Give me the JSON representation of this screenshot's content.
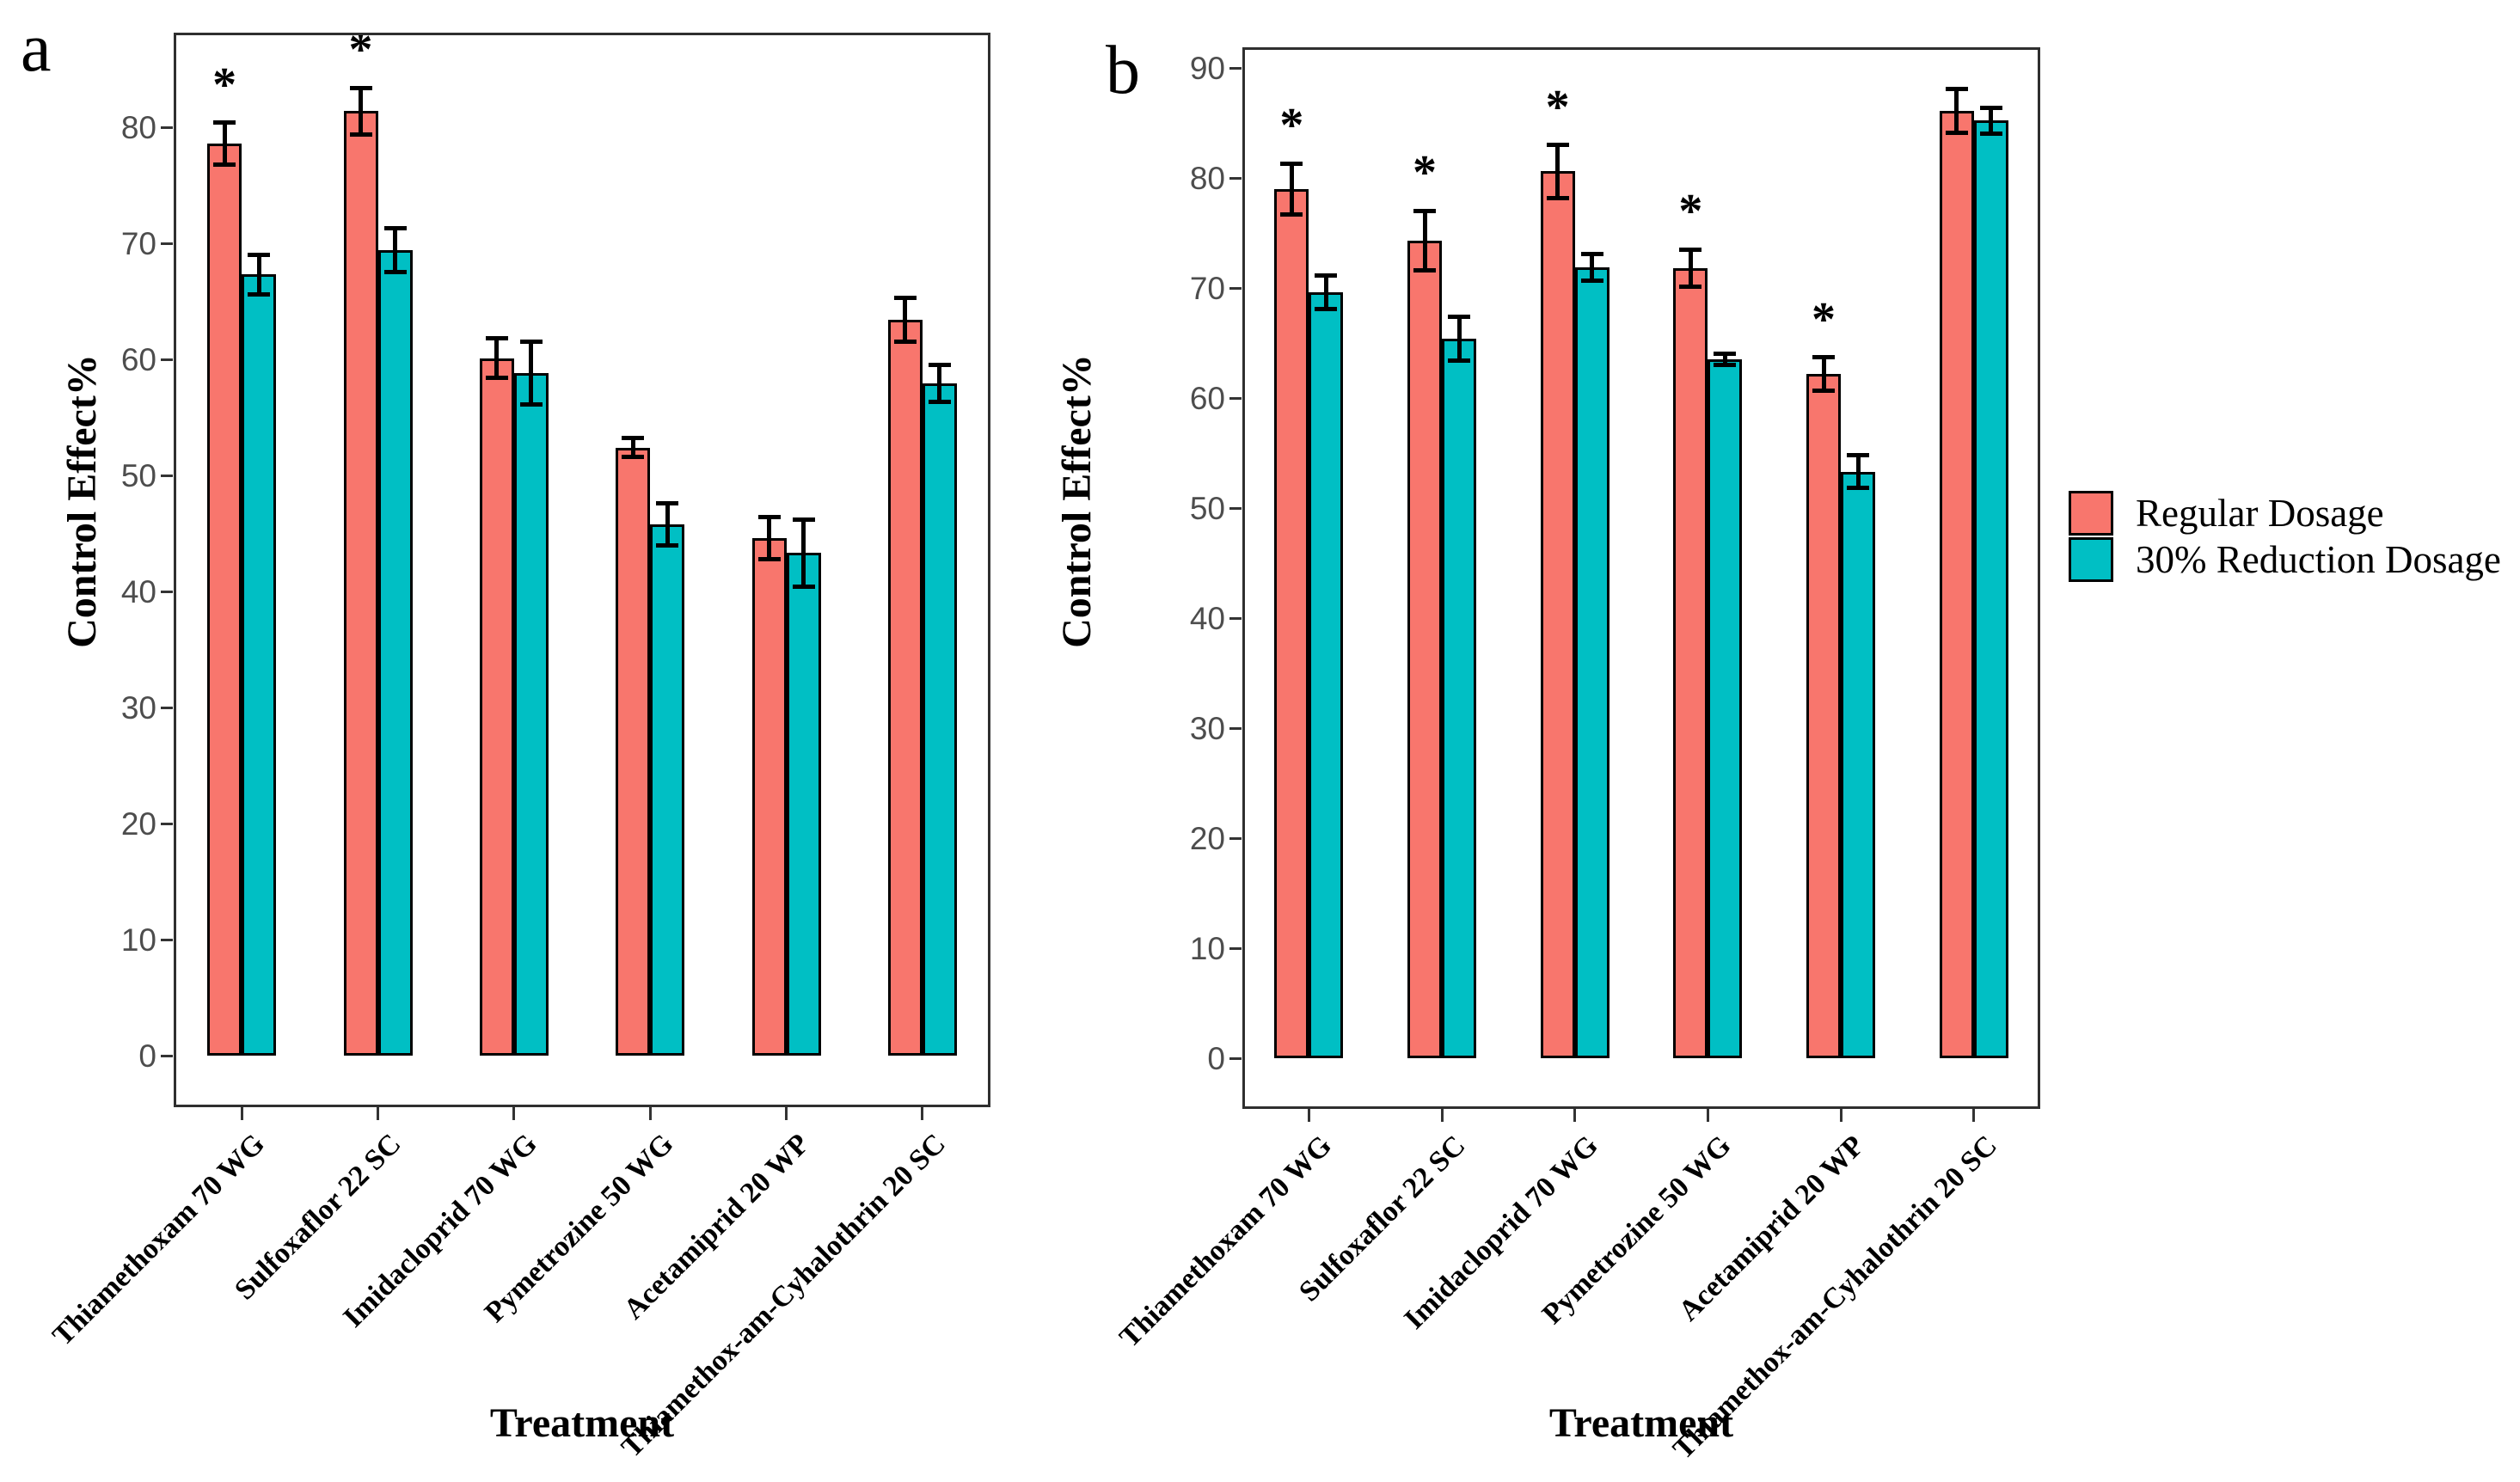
{
  "figure": {
    "panels": [
      {
        "label": "a"
      },
      {
        "label": "b"
      }
    ],
    "legend": {
      "items": [
        {
          "label": "Regular Dosage",
          "color": "#F8766D"
        },
        {
          "label": "30% Reduction Dosage",
          "color": "#00BFC4"
        }
      ]
    }
  },
  "chart_data": [
    {
      "type": "bar",
      "panel": "a",
      "title": "",
      "xlabel": "Treatment",
      "ylabel": "Control Effect%",
      "ylim": [
        0,
        88
      ],
      "yticks": [
        0,
        10,
        20,
        30,
        40,
        50,
        60,
        70,
        80
      ],
      "grid": false,
      "legend_position": "right-outside",
      "error_bars": true,
      "categories": [
        "Thiamethoxam 70 WG",
        "Sulfoxaflor 22 SC",
        "Imidacloprid 70 WG",
        "Pymetrozine 50 WG",
        "Acetamiprid 20 WP",
        "Thiamethox-am-Cyhalothrin 20 SC"
      ],
      "series": [
        {
          "name": "Regular Dosage",
          "color": "#F8766D",
          "values": [
            78.6,
            81.4,
            60.1,
            52.4,
            44.6,
            63.4
          ],
          "errors": [
            1.8,
            2.0,
            1.7,
            0.8,
            1.8,
            1.9
          ],
          "significance": [
            "*",
            "*",
            "",
            "",
            "",
            ""
          ]
        },
        {
          "name": "30% Reduction Dosage",
          "color": "#00BFC4",
          "values": [
            67.3,
            69.4,
            58.8,
            45.8,
            43.3,
            57.9
          ],
          "errors": [
            1.7,
            1.9,
            2.7,
            1.8,
            2.9,
            1.6
          ],
          "significance": [
            "",
            "",
            "",
            "",
            "",
            ""
          ]
        }
      ]
    },
    {
      "type": "bar",
      "panel": "b",
      "title": "",
      "xlabel": "Treatment",
      "ylabel": "Control Effect%",
      "ylim": [
        0,
        92
      ],
      "yticks": [
        0,
        10,
        20,
        30,
        40,
        50,
        60,
        70,
        80,
        90
      ],
      "grid": false,
      "legend_position": "right-outside",
      "error_bars": true,
      "categories": [
        "Thiamethoxam 70 WG",
        "Sulfoxaflor 22 SC",
        "Imidacloprid 70 WG",
        "Pymetrozine 50 WG",
        "Acetamiprid 20 WP",
        "Thiamethox-am-Cyhalothrin 20 SC"
      ],
      "series": [
        {
          "name": "Regular Dosage",
          "color": "#F8766D",
          "values": [
            79.0,
            74.3,
            80.6,
            71.8,
            62.2,
            86.1
          ],
          "errors": [
            2.3,
            2.7,
            2.4,
            1.7,
            1.5,
            2.0
          ],
          "significance": [
            "*",
            "*",
            "*",
            "*",
            "*",
            ""
          ]
        },
        {
          "name": "30% Reduction Dosage",
          "color": "#00BFC4",
          "values": [
            69.6,
            65.4,
            71.9,
            63.5,
            53.3,
            85.2
          ],
          "errors": [
            1.5,
            2.0,
            1.2,
            0.5,
            1.5,
            1.2
          ],
          "significance": [
            "",
            "",
            "",
            "",
            "",
            ""
          ]
        }
      ]
    }
  ]
}
